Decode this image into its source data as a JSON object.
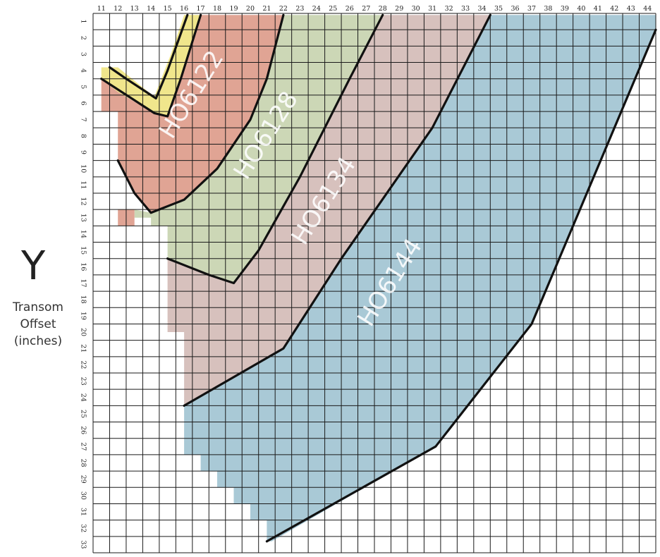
{
  "axis": {
    "y_letter": "Y",
    "y_label_lines": [
      "Transom",
      "Offset",
      "(inches)"
    ]
  },
  "chart_data": {
    "type": "area",
    "title": "",
    "xlabel": "",
    "ylabel": "Transom Offset (inches)",
    "x_ticks": [
      11,
      12,
      13,
      14,
      15,
      16,
      17,
      18,
      19,
      20,
      21,
      22,
      23,
      24,
      25,
      26,
      27,
      28,
      29,
      30,
      31,
      32,
      33,
      34,
      35,
      36,
      37,
      38,
      39,
      40,
      41,
      42,
      43,
      44
    ],
    "y_ticks": [
      1,
      2,
      3,
      4,
      5,
      6,
      7,
      8,
      9,
      10,
      11,
      12,
      13,
      14,
      15,
      16,
      17,
      18,
      19,
      20,
      21,
      22,
      23,
      24,
      25,
      26,
      27,
      28,
      29,
      30,
      31,
      32,
      33
    ],
    "xlim": [
      10.5,
      44.5
    ],
    "ylim": [
      0,
      33
    ],
    "y_inverted": true,
    "grid": true,
    "colors": {
      "yellow": "#f0e68c",
      "HO6122": "#e0a494",
      "HO6128": "#ccd7b6",
      "HO6134": "#d7c1bd",
      "HO6144": "#a9c9d6",
      "grid": "#1a1a1a",
      "boundary": "#111111"
    },
    "series": [
      {
        "name": "HO6144",
        "color": "#a9c9d6",
        "label_pos": [
          28.5,
          16.5
        ],
        "polygon": [
          [
            35,
            0.1
          ],
          [
            44.5,
            0.1
          ],
          [
            44.5,
            1.0
          ],
          [
            37,
            19
          ],
          [
            31.2,
            26.5
          ],
          [
            21.3,
            32.3
          ],
          [
            21,
            32.3
          ],
          [
            21,
            31
          ],
          [
            20,
            31
          ],
          [
            20,
            30
          ],
          [
            19,
            30
          ],
          [
            19,
            29
          ],
          [
            18,
            29
          ],
          [
            18,
            28
          ],
          [
            17,
            28
          ],
          [
            17,
            27
          ],
          [
            16,
            27
          ],
          [
            16,
            24
          ],
          [
            22,
            20.5
          ],
          [
            25.5,
            15
          ],
          [
            31,
            7
          ],
          [
            34.5,
            0.1
          ]
        ]
      },
      {
        "name": "HO6134",
        "color": "#d7c1bd",
        "label_pos": [
          24.5,
          11.5
        ],
        "polygon": [
          [
            28,
            0.1
          ],
          [
            34.5,
            0.1
          ],
          [
            31,
            7
          ],
          [
            25.5,
            15
          ],
          [
            22,
            20.5
          ],
          [
            16,
            24
          ],
          [
            16,
            19.5
          ],
          [
            15,
            19.5
          ],
          [
            15,
            15
          ],
          [
            17.5,
            16
          ],
          [
            19,
            16.5
          ],
          [
            20.5,
            14.5
          ],
          [
            23,
            10
          ],
          [
            26,
            4
          ]
        ]
      },
      {
        "name": "HO6128",
        "color": "#ccd7b6",
        "label_pos": [
          21,
          7.5
        ],
        "polygon": [
          [
            22,
            0.1
          ],
          [
            28,
            0.1
          ],
          [
            26,
            4
          ],
          [
            23,
            10
          ],
          [
            20.5,
            14.5
          ],
          [
            19,
            16.5
          ],
          [
            17.5,
            16
          ],
          [
            15,
            15
          ],
          [
            15,
            13
          ],
          [
            14,
            13
          ],
          [
            14,
            12.5
          ],
          [
            13,
            12.5
          ],
          [
            13,
            12
          ],
          [
            14,
            12.2
          ],
          [
            16,
            11.4
          ],
          [
            18,
            9.5
          ],
          [
            20,
            6.5
          ],
          [
            21,
            4
          ]
        ]
      },
      {
        "name": "HO6122",
        "color": "#e0a494",
        "label_pos": [
          16.5,
          5
        ],
        "polygon": [
          [
            17,
            0.1
          ],
          [
            22,
            0.1
          ],
          [
            21,
            4
          ],
          [
            20,
            6.5
          ],
          [
            18,
            9.5
          ],
          [
            16,
            11.4
          ],
          [
            14,
            12.2
          ],
          [
            13,
            11
          ],
          [
            12,
            9
          ],
          [
            12,
            12
          ],
          [
            13,
            12
          ],
          [
            13,
            13
          ],
          [
            12,
            13
          ],
          [
            12,
            6
          ],
          [
            11,
            6
          ],
          [
            11,
            4
          ],
          [
            12,
            4.8
          ],
          [
            14,
            6
          ],
          [
            15,
            6.2
          ],
          [
            16,
            3
          ]
        ]
      },
      {
        "name": "",
        "color": "#f0e68c",
        "polygon": [
          [
            16,
            0.1
          ],
          [
            17,
            0.1
          ],
          [
            15.8,
            4
          ],
          [
            15,
            6.3
          ],
          [
            14.2,
            6.1
          ],
          [
            12,
            4.8
          ],
          [
            11,
            4
          ],
          [
            11,
            3.3
          ],
          [
            12,
            3.3
          ],
          [
            14.2,
            5.1
          ],
          [
            15.2,
            2.5
          ]
        ]
      }
    ],
    "boundaries": [
      [
        [
          16.2,
          0.1
        ],
        [
          15,
          3.5
        ],
        [
          14.3,
          5.2
        ],
        [
          12.5,
          4
        ],
        [
          11.5,
          3.3
        ]
      ],
      [
        [
          17,
          0.1
        ],
        [
          15.8,
          4
        ],
        [
          15,
          6.3
        ],
        [
          14.2,
          6.1
        ],
        [
          11,
          4
        ]
      ],
      [
        [
          22,
          0.1
        ],
        [
          21,
          4
        ],
        [
          20,
          6.5
        ],
        [
          18,
          9.5
        ],
        [
          16,
          11.4
        ],
        [
          14,
          12.2
        ],
        [
          13,
          11
        ],
        [
          12,
          9
        ]
      ],
      [
        [
          28,
          0.1
        ],
        [
          26,
          4
        ],
        [
          23,
          10
        ],
        [
          20.5,
          14.5
        ],
        [
          19,
          16.5
        ],
        [
          17.5,
          16
        ],
        [
          15,
          15
        ]
      ],
      [
        [
          34.5,
          0.1
        ],
        [
          31,
          7
        ],
        [
          25.5,
          15
        ],
        [
          22,
          20.5
        ],
        [
          16,
          24
        ]
      ],
      [
        [
          44.5,
          1.0
        ],
        [
          37,
          19
        ],
        [
          31.2,
          26.5
        ],
        [
          21,
          32.3
        ]
      ]
    ]
  }
}
